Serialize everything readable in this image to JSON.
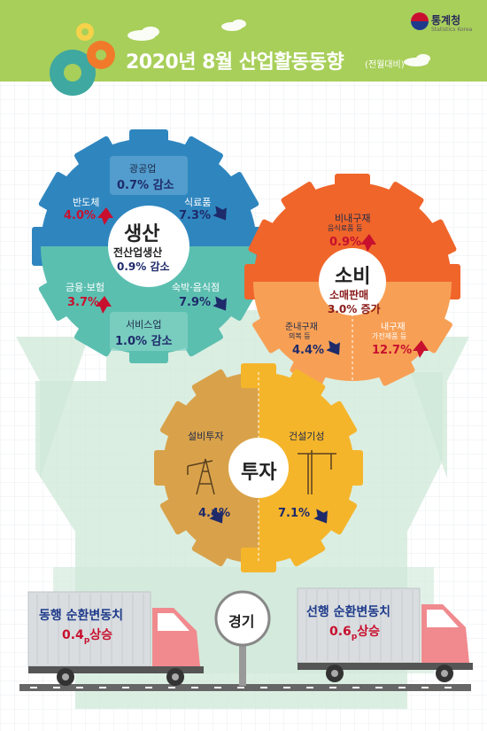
{
  "header": {
    "title": "2020년 8월 산업활동동향",
    "subtitle": "(전월대비)",
    "logo_name": "통계청",
    "logo_en": "Statistics Korea"
  },
  "production": {
    "title": "생산",
    "center_label": "전산업생산",
    "center_value": "0.9% 감소",
    "mining": {
      "label": "광공업",
      "value": "0.7% 감소"
    },
    "semiconductor": {
      "label": "반도체",
      "value": "4.0%",
      "direction": "up"
    },
    "food": {
      "label": "식료품",
      "value": "7.3%",
      "direction": "down"
    },
    "finance": {
      "label": "금융·보험",
      "value": "3.7%",
      "direction": "up"
    },
    "lodging": {
      "label": "숙박·음식점",
      "value": "7.9%",
      "direction": "down"
    },
    "service": {
      "label": "서비스업",
      "value": "1.0% 감소"
    }
  },
  "consumption": {
    "title": "소비",
    "center_label": "소매판매",
    "center_value": "3.0% 증가",
    "nondurable": {
      "label": "비내구재",
      "sublabel": "음식료품 등",
      "value": "0.9%",
      "direction": "up"
    },
    "semidurable": {
      "label": "준내구재",
      "sublabel": "의복 등",
      "value": "4.4%",
      "direction": "down"
    },
    "durable": {
      "label": "내구재",
      "sublabel": "가전제품 등",
      "value": "12.7%",
      "direction": "up"
    }
  },
  "investment": {
    "title": "투자",
    "equipment": {
      "label": "설비투자",
      "value": "4.4%",
      "direction": "down"
    },
    "construction": {
      "label": "건설기성",
      "value": "7.1%",
      "direction": "down"
    }
  },
  "economy": {
    "sign_label": "경기",
    "coincident": {
      "label": "동행 순환변동치",
      "value_main": "0.4",
      "value_sub": "p",
      "value_suffix": "상승"
    },
    "leading": {
      "label": "선행 순환변동치",
      "value_main": "0.6",
      "value_sub": "p",
      "value_suffix": "상승"
    }
  },
  "colors": {
    "header_green": "#a8cf5a",
    "prod_blue": "#2f86bf",
    "prod_teal": "#5bbfb0",
    "cons_orange": "#f0652a",
    "cons_light": "#f7a055",
    "inv_tan": "#d9a24a",
    "inv_yellow": "#f5b52b",
    "truck_pink": "#f08a8e",
    "up_red": "#c8102e",
    "down_navy": "#1e2a6a"
  }
}
